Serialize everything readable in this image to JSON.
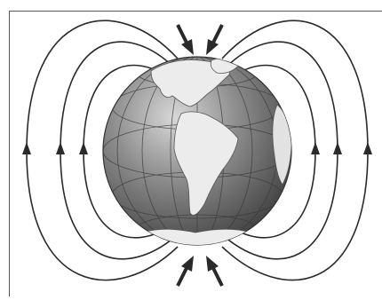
{
  "diagram": {
    "subject": "earth-magnetic-field",
    "colors": {
      "field_line": "#2a2a2a",
      "globe_dark": "#4a4a4a",
      "globe_mid": "#8a8a8a",
      "globe_light": "#cfcfcf",
      "land": "#ececec",
      "arrow": "#333333"
    },
    "field_line_count_per_side": 3,
    "pole_arrows": [
      "north-left",
      "north-right",
      "south-left",
      "south-right"
    ]
  }
}
